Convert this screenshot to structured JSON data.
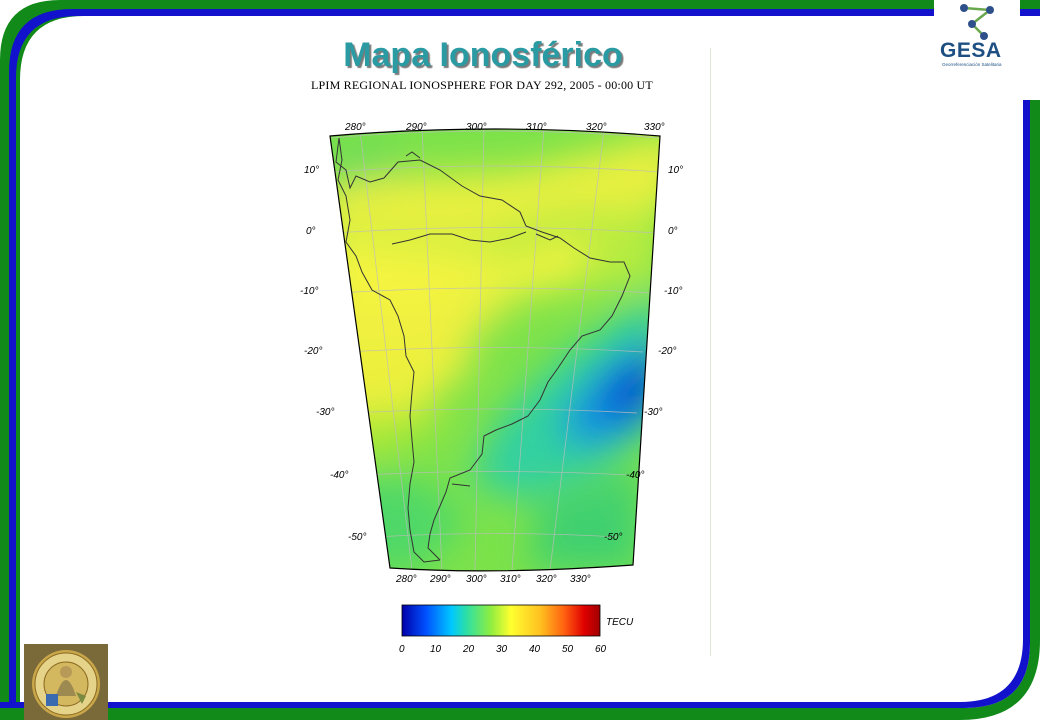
{
  "slide": {
    "title": "Mapa Ionosférico",
    "subtitle": "LPIM REGIONAL IONOSPHERE FOR DAY 292, 2005 - 00:00 UT"
  },
  "logo": {
    "text": "GESA",
    "tagline": "Georreferenciación Satelitaria",
    "icon": "molecule-icon"
  },
  "seal": {
    "icon": "university-seal-icon",
    "text": "UNIVERSIDAD NACIONAL DE LA PLATA"
  },
  "map": {
    "lon_top_labels": [
      "280°",
      "290°",
      "300°",
      "310°",
      "320°",
      "330°"
    ],
    "lon_bottom_labels": [
      "280°",
      "290°",
      "300°",
      "310°",
      "320°",
      "330°"
    ],
    "lat_left_labels": [
      "10°",
      "0°",
      "-10°",
      "-20°",
      "-30°",
      "-40°",
      "-50°"
    ],
    "lat_right_labels": [
      "10°",
      "0°",
      "-10°",
      "-20°",
      "-30°",
      "-40°",
      "-50°"
    ]
  },
  "colorbar": {
    "unit": "TECU",
    "ticks": [
      "0",
      "10",
      "20",
      "30",
      "40",
      "50",
      "60"
    ],
    "min": 0,
    "max": 60
  },
  "colors": {
    "frame_green": "#118a1a",
    "frame_blue": "#1010d0",
    "title": "#2a9aa3"
  }
}
